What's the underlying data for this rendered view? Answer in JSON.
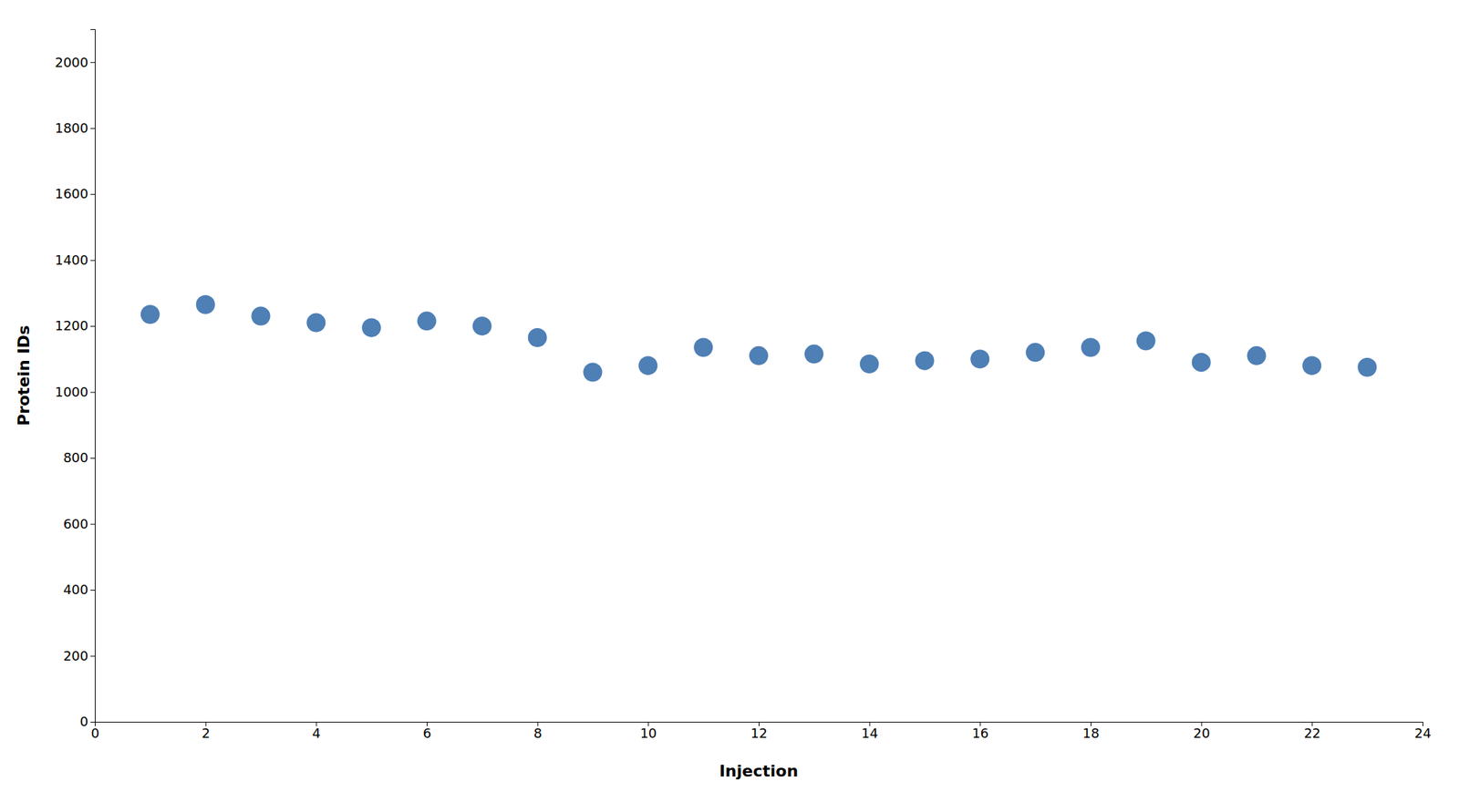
{
  "chart_data": {
    "type": "scatter",
    "x": [
      1,
      2,
      3,
      4,
      5,
      6,
      7,
      8,
      9,
      10,
      11,
      12,
      13,
      14,
      15,
      16,
      17,
      18,
      19,
      20,
      21,
      22,
      23
    ],
    "values": [
      1235,
      1265,
      1230,
      1210,
      1195,
      1215,
      1200,
      1165,
      1060,
      1080,
      1135,
      1110,
      1115,
      1085,
      1095,
      1100,
      1120,
      1135,
      1155,
      1090,
      1110,
      1080,
      1075
    ],
    "color": "#4e7fb5",
    "xlabel": "Injection",
    "ylabel": "Protein IDs",
    "xlim": [
      0,
      24
    ],
    "ylim": [
      0,
      2100
    ],
    "xticks": [
      0,
      2,
      4,
      6,
      8,
      10,
      12,
      14,
      16,
      18,
      20,
      22,
      24
    ],
    "yticks": [
      0,
      200,
      400,
      600,
      800,
      1000,
      1200,
      1400,
      1600,
      1800,
      2000
    ],
    "grid": false
  }
}
